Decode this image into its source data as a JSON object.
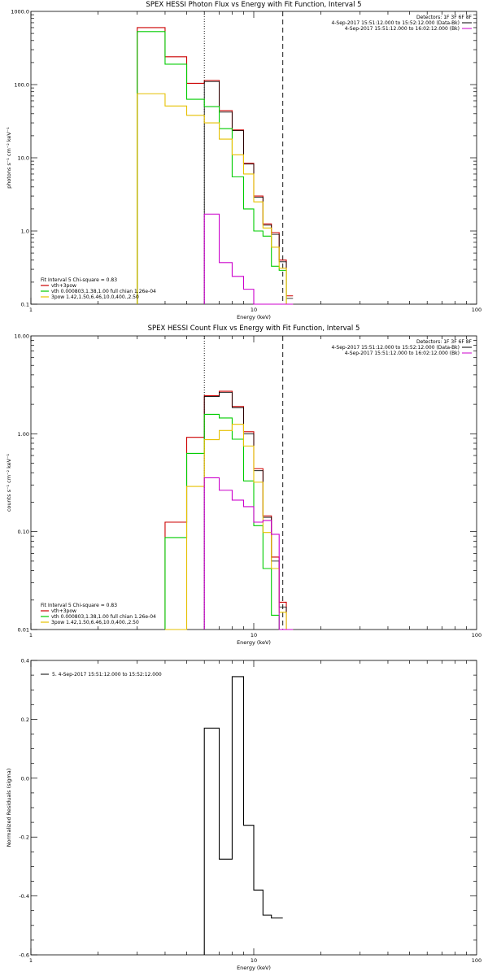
{
  "figure": {
    "panels": [
      {
        "id": "photon",
        "title": "SPEX HESSI Photon Flux vs Energy with Fit Function, Interval 5",
        "ylabel": "photons s⁻¹ cm⁻² keV⁻¹",
        "xlabel": "Energy (keV)"
      },
      {
        "id": "count",
        "title": "SPEX HESSI Count Flux vs Energy with Fit Function, Interval 5",
        "ylabel": "counts s⁻¹ cm⁻² keV⁻¹",
        "xlabel": "Energy (keV)"
      },
      {
        "id": "residuals",
        "title": "",
        "ylabel": "Normalized Residuals (sigma)",
        "xlabel": "Energy (keV)"
      }
    ],
    "info_right": {
      "detectors": "Detectors: 1F 3F 6F 8F",
      "line1": "4-Sep-2017 15:51:12.000 to 15:52:12.000 (Data-Bk)",
      "line2": "4-Sep-2017 15:51:12.000 to 16:02:12.000 (Bk)"
    },
    "fit_legend": {
      "header": "Fit Interval 5   Chi-square = 0.83",
      "entries": [
        "vth+3pow",
        "vth 0.000803,1.38,1.00  full chian 1.26e-04",
        "3pow 1.42,1.50,6.46,10.0,400.,2.50"
      ]
    },
    "residual_legend": "5.  4-Sep-2017 15:51:12.000 to 15:52:12.000"
  },
  "chart_data": [
    {
      "type": "line",
      "style": "histogram-step",
      "title": "SPEX HESSI Photon Flux vs Energy with Fit Function, Interval 5",
      "xlabel": "Energy (keV)",
      "ylabel": "photons s⁻¹ cm⁻² keV⁻¹",
      "x_scale": "log",
      "y_scale": "log",
      "xlim": [
        1,
        100
      ],
      "ylim": [
        0.1,
        1000
      ],
      "x_ticks": [
        "1",
        "10",
        "100"
      ],
      "y_ticks": [
        "0.1",
        "1.0",
        "10.0",
        "100.0",
        "1000.0"
      ],
      "vlines": [
        {
          "x": 6.0,
          "style": "dotted"
        },
        {
          "x": 13.5,
          "style": "dashed"
        }
      ],
      "bin_edges": [
        3.0,
        4.0,
        5.0,
        6.0,
        7.0,
        8.0,
        9.0,
        10.0,
        11.0,
        12.0,
        13.0,
        14.0,
        15.0
      ],
      "series": [
        {
          "name": "vth+3pow",
          "color": "#cc0000",
          "values": [
            600,
            240,
            104,
            114,
            44,
            24,
            8.4,
            3.0,
            1.25,
            0.95,
            0.4,
            0.13
          ]
        },
        {
          "color": "#000000",
          "values": [
            null,
            null,
            null,
            110,
            42,
            23.5,
            8.2,
            2.9,
            1.2,
            0.9,
            0.38,
            0.12
          ]
        },
        {
          "name": "vth 0.000803,1.38,1.00  full chian 1.26e-04",
          "color": "#00cc00",
          "values": [
            530,
            190,
            63,
            50,
            25,
            5.5,
            2.0,
            1.0,
            0.85,
            0.33,
            0.29,
            0.1
          ]
        },
        {
          "name": "3pow 1.42,1.50,6.46,10.0,400.,2.50",
          "color": "#e6c000",
          "values": [
            75,
            51,
            38,
            30,
            18,
            11,
            6.0,
            2.5,
            1.1,
            0.6,
            0.31,
            0.1
          ]
        },
        {
          "color": "#cc00cc",
          "values": [
            null,
            null,
            null,
            1.7,
            0.37,
            0.24,
            0.16,
            0.1,
            0.1,
            0.1,
            0.1,
            0.1
          ]
        }
      ]
    },
    {
      "type": "line",
      "style": "histogram-step",
      "title": "SPEX HESSI Count Flux vs Energy with Fit Function, Interval 5",
      "xlabel": "Energy (keV)",
      "ylabel": "counts s⁻¹ cm⁻² keV⁻¹",
      "x_scale": "log",
      "y_scale": "log",
      "xlim": [
        1,
        100
      ],
      "ylim": [
        0.01,
        10
      ],
      "x_ticks": [
        "1",
        "10",
        "100"
      ],
      "y_ticks": [
        "0.01",
        "0.10",
        "1.00",
        "10.00"
      ],
      "vlines": [
        {
          "x": 6.0,
          "style": "dotted"
        },
        {
          "x": 13.5,
          "style": "dashed"
        }
      ],
      "bin_edges": [
        4.0,
        5.0,
        6.0,
        7.0,
        8.0,
        9.0,
        10.0,
        11.0,
        12.0,
        13.0,
        14.0,
        15.0
      ],
      "series": [
        {
          "name": "vth+3pow",
          "color": "#cc0000",
          "values": [
            0.125,
            0.92,
            2.45,
            2.72,
            1.9,
            1.05,
            0.44,
            0.145,
            0.055,
            0.019,
            0.01
          ]
        },
        {
          "color": "#000000",
          "values": [
            null,
            null,
            2.4,
            2.65,
            1.85,
            1.0,
            0.42,
            0.14,
            0.05,
            0.017,
            0.01
          ]
        },
        {
          "name": "vth 0.000803,1.38,1.00  full chian 1.26e-04",
          "color": "#00cc00",
          "values": [
            0.087,
            0.63,
            1.58,
            1.45,
            0.88,
            0.33,
            0.115,
            0.042,
            0.014,
            0.01,
            0.01
          ]
        },
        {
          "name": "3pow 1.42,1.50,6.46,10.0,400.,2.50",
          "color": "#e6c000",
          "values": [
            0.01,
            0.29,
            0.87,
            1.08,
            1.25,
            0.75,
            0.32,
            0.098,
            0.042,
            0.015,
            0.01
          ]
        },
        {
          "color": "#cc00cc",
          "values": [
            null,
            null,
            0.355,
            0.265,
            0.21,
            0.18,
            0.125,
            0.13,
            0.094,
            0.01,
            0.01
          ]
        }
      ]
    },
    {
      "type": "line",
      "style": "histogram-step",
      "xlabel": "Energy (keV)",
      "ylabel": "Normalized Residuals (sigma)",
      "x_scale": "log",
      "y_scale": "linear",
      "xlim": [
        1,
        100
      ],
      "ylim": [
        -0.6,
        0.4
      ],
      "x_ticks": [
        "1",
        "10",
        "100"
      ],
      "y_ticks": [
        "-0.6",
        "-0.4",
        "-0.2",
        "0.0",
        "0.2",
        "0.4"
      ],
      "bin_edges": [
        6.0,
        7.0,
        8.0,
        9.0,
        10.0,
        11.0,
        12.0,
        13.5
      ],
      "series": [
        {
          "name": "5.  4-Sep-2017 15:51:12.000 to 15:52:12.000",
          "color": "#000000",
          "values": [
            0.17,
            -0.275,
            0.345,
            -0.16,
            -0.38,
            -0.465,
            -0.475
          ]
        }
      ]
    }
  ]
}
